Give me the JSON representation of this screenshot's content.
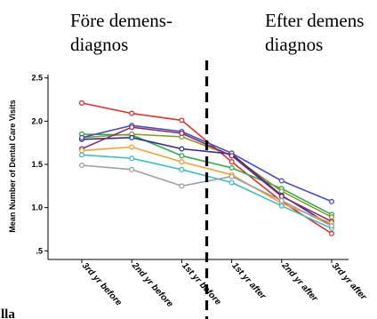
{
  "chart_data": {
    "type": "line",
    "title": "",
    "xlabel": "",
    "ylabel": "Mean Number of Dental Care Visits",
    "categories": [
      "3rd yr before",
      "2nd yr before",
      "1st yr before",
      "1st yr after",
      "2nd yr after",
      "3rd yr after"
    ],
    "yticks": [
      ".5",
      "1.0",
      "1.5",
      "2.0",
      "2.5"
    ],
    "ylim": [
      0.4,
      2.6
    ],
    "grid": false,
    "divider_between": [
      "1st yr before",
      "1st yr after"
    ],
    "annotations": {
      "before_line1": "Före demens-",
      "before_line2": "diagnos",
      "after_line1": "Efter demens",
      "after_line2": "diagnos",
      "corner_text": "lla"
    },
    "series": [
      {
        "color": "#e0312b",
        "values": [
          2.21,
          2.09,
          2.01,
          1.53,
          1.07,
          0.7
        ]
      },
      {
        "color": "#2fae4a",
        "values": [
          1.85,
          1.84,
          1.6,
          1.46,
          1.22,
          0.92
        ]
      },
      {
        "color": "#8a9b2c",
        "values": [
          1.81,
          1.85,
          1.82,
          1.6,
          1.19,
          0.89
        ]
      },
      {
        "color": "#2a2f8f",
        "values": [
          1.79,
          1.81,
          1.68,
          1.62,
          1.14,
          0.79
        ]
      },
      {
        "color": "#4a4ec0",
        "values": [
          1.81,
          1.95,
          1.88,
          1.63,
          1.31,
          1.07
        ]
      },
      {
        "color": "#8b2c6f",
        "values": [
          1.68,
          1.93,
          1.86,
          1.6,
          1.13,
          0.84
        ]
      },
      {
        "color": "#f2a23a",
        "values": [
          1.66,
          1.7,
          1.53,
          1.38,
          1.05,
          0.82
        ]
      },
      {
        "color": "#3fbfc4",
        "values": [
          1.61,
          1.57,
          1.44,
          1.29,
          1.02,
          0.76
        ]
      },
      {
        "color": "#a0a0a0",
        "values": [
          1.49,
          1.44,
          1.25,
          1.36,
          1.08,
          0.79
        ]
      }
    ]
  }
}
